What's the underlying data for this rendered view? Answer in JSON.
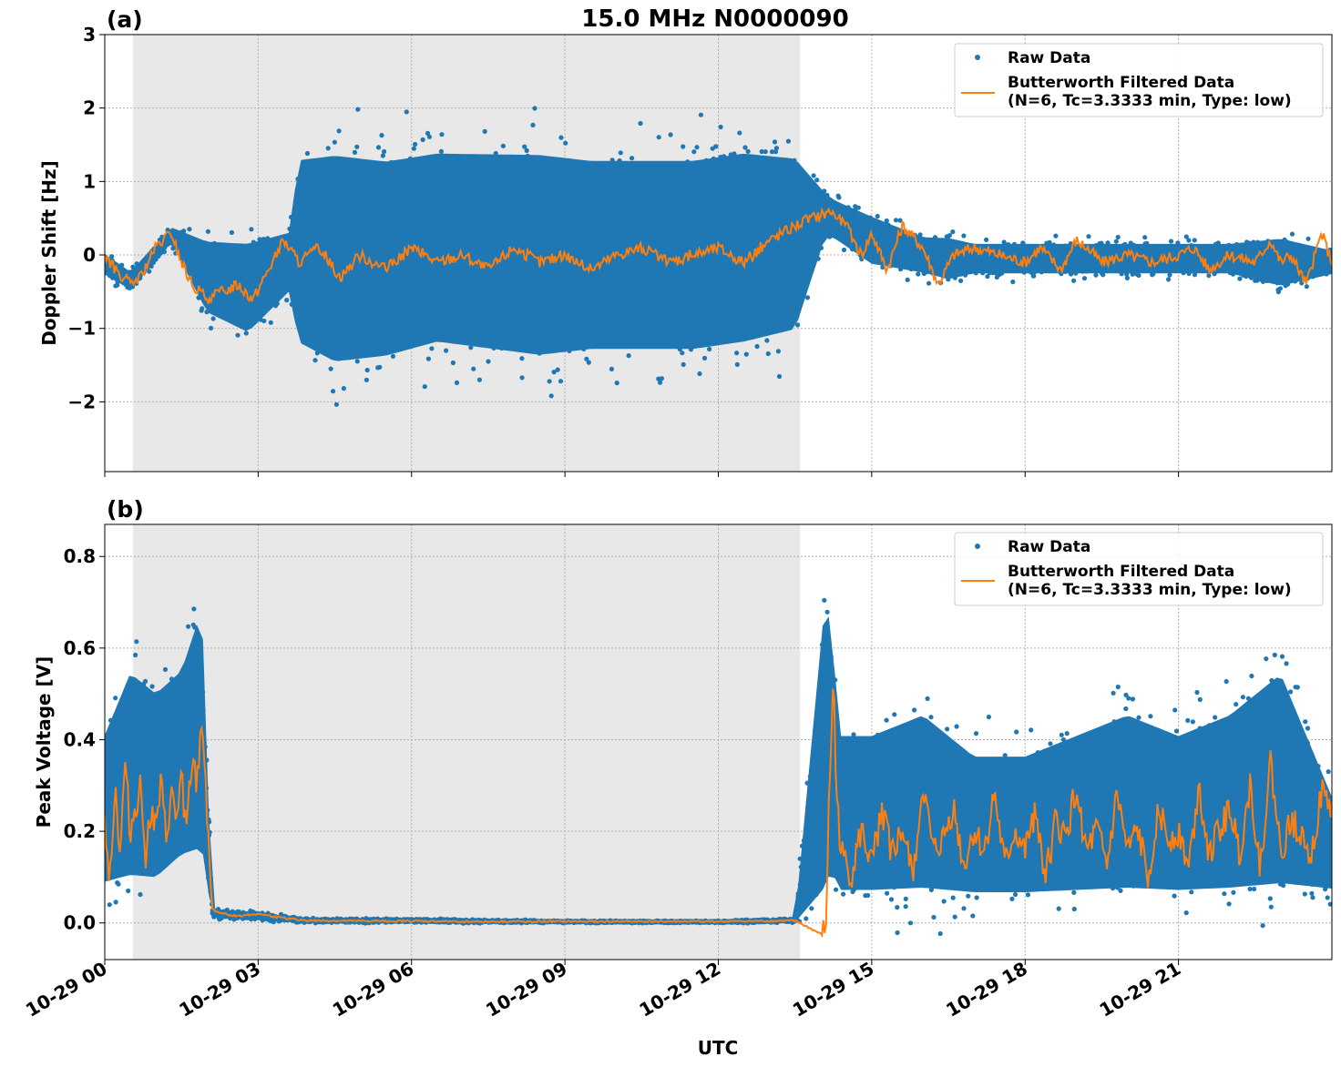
{
  "figure": {
    "title": "15.0 MHz N0000090",
    "xlabel": "UTC",
    "x_tick_labels": [
      "10-29 00",
      "10-29 03",
      "10-29 06",
      "10-29 09",
      "10-29 12",
      "10-29 15",
      "10-29 18",
      "10-29 21"
    ]
  },
  "colors": {
    "raw": "#1f77b4",
    "filtered": "#ff7f0e",
    "shade": "#e8e8e8",
    "grid": "#b0b0b0"
  },
  "chart_data": [
    {
      "type": "scatter",
      "panel_label": "(a)",
      "ylabel": "Doppler Shift [Hz]",
      "x_unit": "hours UTC on 10-29",
      "xlim": [
        0,
        24
      ],
      "ylim": [
        -2.95,
        3.0
      ],
      "y_ticks": [
        -2,
        -1,
        0,
        1,
        2,
        3
      ],
      "y_tick_labels": [
        "−2",
        "−1",
        "0",
        "1",
        "2",
        "3"
      ],
      "grid": true,
      "legend_position": "top-right",
      "shaded_interval_hours": [
        0.55,
        13.6
      ],
      "series": [
        {
          "name": "Raw Data",
          "style": "points",
          "x": [
            0,
            0.5,
            1.3,
            2,
            2.8,
            3.6,
            3.8,
            4.5,
            5.5,
            6.5,
            7.5,
            8.5,
            9.5,
            10.5,
            11.5,
            12.5,
            13.5,
            14.1,
            14.3,
            15,
            16,
            16.5,
            17,
            18,
            19,
            20,
            21,
            22,
            23,
            24
          ],
          "y_band_low": [
            -0.3,
            -0.5,
            0.15,
            -0.9,
            -1.2,
            -0.6,
            -1.5,
            -1.8,
            -1.7,
            -1.5,
            -1.6,
            -1.7,
            -1.6,
            -1.6,
            -1.6,
            -1.5,
            -1.3,
            0.2,
            0.15,
            -0.2,
            -0.3,
            -0.4,
            -0.3,
            -0.3,
            -0.3,
            -0.3,
            -0.3,
            -0.3,
            -0.5,
            -0.3
          ],
          "y_band_high": [
            0.05,
            -0.2,
            0.4,
            0.3,
            0.3,
            0.4,
            1.6,
            1.7,
            1.6,
            1.7,
            1.7,
            1.7,
            1.6,
            1.6,
            1.6,
            1.7,
            1.6,
            0.9,
            0.8,
            0.6,
            0.3,
            0.3,
            0.2,
            0.2,
            0.2,
            0.2,
            0.2,
            0.2,
            0.3,
            0.1
          ]
        },
        {
          "name": "Butterworth Filtered Data\n(N=6, Tc=3.3333 min, Type: low)",
          "style": "line",
          "x": [
            0,
            0.2,
            0.5,
            0.7,
            1,
            1.3,
            1.5,
            1.7,
            2,
            2.3,
            2.6,
            2.9,
            3.2,
            3.5,
            3.8,
            4.2,
            4.6,
            5,
            5.5,
            6,
            6.5,
            7,
            7.5,
            8,
            8.5,
            9,
            9.5,
            10,
            10.5,
            11,
            11.5,
            12,
            12.5,
            13,
            13.5,
            13.8,
            14.2,
            14.5,
            14.8,
            15,
            15.3,
            15.6,
            16,
            16.3,
            16.6,
            17,
            17.5,
            18,
            18.3,
            18.7,
            19,
            19.2,
            19.5,
            20,
            20.5,
            21,
            21.3,
            21.6,
            22,
            22.5,
            22.8,
            23,
            23.2,
            23.5,
            23.8,
            24
          ],
          "y": [
            0,
            -0.2,
            -0.4,
            -0.3,
            0.1,
            0.3,
            -0.1,
            -0.4,
            -0.6,
            -0.5,
            -0.4,
            -0.6,
            -0.2,
            0.2,
            -0.1,
            0.1,
            -0.3,
            0.0,
            -0.2,
            0.1,
            -0.1,
            0.0,
            -0.2,
            0.1,
            -0.1,
            0.0,
            -0.2,
            0.0,
            0.1,
            -0.1,
            0.0,
            0.1,
            -0.1,
            0.2,
            0.4,
            0.5,
            0.6,
            0.4,
            0.0,
            0.3,
            -0.2,
            0.4,
            0.1,
            -0.4,
            0.0,
            0.1,
            0.0,
            -0.1,
            0.1,
            -0.2,
            0.2,
            0.1,
            -0.1,
            0.0,
            -0.1,
            0.0,
            0.1,
            -0.2,
            0.0,
            -0.1,
            0.2,
            -0.1,
            0.0,
            -0.4,
            0.3,
            -0.1
          ]
        }
      ]
    },
    {
      "type": "scatter",
      "panel_label": "(b)",
      "ylabel": "Peak Voltage [V]",
      "x_unit": "hours UTC on 10-29",
      "xlim": [
        0,
        24
      ],
      "ylim": [
        -0.08,
        0.87
      ],
      "y_ticks": [
        0.0,
        0.2,
        0.4,
        0.6,
        0.8
      ],
      "y_tick_labels": [
        "0.0",
        "0.2",
        "0.4",
        "0.6",
        "0.8"
      ],
      "grid": true,
      "legend_position": "top-right",
      "shaded_interval_hours": [
        0.55,
        13.6
      ],
      "series": [
        {
          "name": "Raw Data",
          "style": "points",
          "x": [
            0,
            0.5,
            1,
            1.5,
            1.9,
            2.1,
            3,
            4,
            6,
            9,
            12,
            13.5,
            14.1,
            14.2,
            14.4,
            15,
            16,
            17,
            18,
            19,
            20,
            21,
            22,
            23,
            24
          ],
          "y_band_low": [
            0.05,
            0.05,
            0.05,
            0.1,
            0.1,
            0.01,
            0.005,
            0.0,
            0.0,
            0.0,
            0.0,
            0.0,
            0.0,
            0.05,
            0.03,
            0.03,
            0.03,
            0.03,
            0.03,
            0.03,
            0.03,
            0.03,
            0.03,
            0.03,
            0.05
          ],
          "y_band_high": [
            0.45,
            0.6,
            0.55,
            0.6,
            0.75,
            0.03,
            0.025,
            0.01,
            0.01,
            0.005,
            0.005,
            0.01,
            0.8,
            0.7,
            0.45,
            0.45,
            0.5,
            0.4,
            0.4,
            0.45,
            0.5,
            0.45,
            0.5,
            0.6,
            0.3
          ]
        },
        {
          "name": "Butterworth Filtered Data\n(N=6, Tc=3.3333 min, Type: low)",
          "style": "line",
          "x": [
            0,
            0.1,
            0.2,
            0.3,
            0.4,
            0.5,
            0.6,
            0.7,
            0.8,
            0.9,
            1,
            1.1,
            1.2,
            1.3,
            1.4,
            1.5,
            1.6,
            1.7,
            1.8,
            1.9,
            2,
            2.1,
            2.3,
            2.6,
            3,
            3.5,
            4,
            5,
            6,
            7,
            8,
            9,
            10,
            11,
            12,
            13,
            13.5,
            14.1,
            14.15,
            14.25,
            14.3,
            14.4,
            14.6,
            14.8,
            15,
            15.2,
            15.4,
            15.6,
            15.8,
            16,
            16.2,
            16.4,
            16.6,
            16.8,
            17,
            17.2,
            17.4,
            17.6,
            17.8,
            18,
            18.2,
            18.4,
            18.6,
            18.8,
            19,
            19.2,
            19.4,
            19.6,
            19.8,
            20,
            20.2,
            20.4,
            20.6,
            20.8,
            21,
            21.2,
            21.4,
            21.6,
            21.8,
            22,
            22.2,
            22.4,
            22.6,
            22.8,
            23,
            23.2,
            23.4,
            23.6,
            23.8,
            24
          ],
          "y": [
            0.22,
            0.1,
            0.3,
            0.15,
            0.35,
            0.2,
            0.25,
            0.3,
            0.15,
            0.25,
            0.2,
            0.3,
            0.18,
            0.28,
            0.22,
            0.32,
            0.2,
            0.35,
            0.3,
            0.45,
            0.25,
            0.03,
            0.02,
            0.015,
            0.02,
            0.01,
            0.005,
            0.004,
            0.004,
            0.003,
            0.003,
            0.003,
            0.003,
            0.003,
            0.003,
            0.004,
            0.005,
            -0.03,
            0.2,
            0.55,
            0.3,
            0.15,
            0.1,
            0.2,
            0.12,
            0.25,
            0.15,
            0.2,
            0.1,
            0.3,
            0.15,
            0.18,
            0.25,
            0.12,
            0.2,
            0.15,
            0.28,
            0.12,
            0.2,
            0.15,
            0.25,
            0.1,
            0.22,
            0.18,
            0.3,
            0.15,
            0.2,
            0.12,
            0.28,
            0.15,
            0.2,
            0.1,
            0.25,
            0.18,
            0.2,
            0.12,
            0.3,
            0.15,
            0.2,
            0.25,
            0.15,
            0.3,
            0.12,
            0.35,
            0.15,
            0.22,
            0.2,
            0.15,
            0.28,
            0.25
          ]
        }
      ]
    }
  ]
}
